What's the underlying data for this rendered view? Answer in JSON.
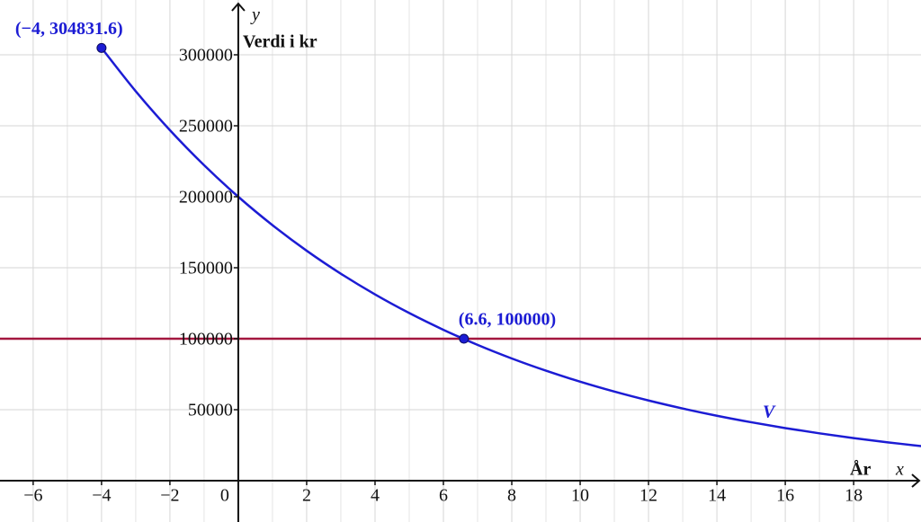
{
  "chart_data": {
    "type": "line",
    "x_label": "År",
    "x_axis_name": "x",
    "y_label": "Verdi i kr",
    "y_axis_name": "y",
    "x": [
      -4,
      -3,
      -2,
      -1,
      0,
      1,
      2,
      3,
      4,
      5,
      6,
      7,
      8,
      9,
      10,
      11,
      12,
      13,
      14,
      15,
      16,
      17,
      18,
      19,
      20
    ],
    "series": [
      {
        "name": "V",
        "color": "#1c1cd4",
        "values": [
          304831.6,
          274348.4,
          246913.6,
          222222.2,
          200000,
          180000,
          162000,
          145800,
          131220,
          118098,
          106288.2,
          95659.4,
          86093.4,
          77484.1,
          69735.7,
          62762.1,
          56485.9,
          50837.3,
          45753.6,
          41178.2,
          37060.4,
          33354.4,
          30018.9,
          27017.0,
          24315.3
        ]
      }
    ],
    "hline": {
      "value": 100000,
      "color": "#a3173f"
    },
    "points": [
      {
        "x": -4,
        "y": 304831.6,
        "label": "(−4, 304831.6)",
        "color": "#1c1cd4"
      },
      {
        "x": 6.6,
        "y": 100000,
        "label": "(6.6, 100000)",
        "color": "#1c1cd4"
      }
    ],
    "xlim": [
      -6.97,
      19.97
    ],
    "ylim": [
      -29100,
      338600
    ],
    "xticks": [
      {
        "value": -6,
        "label": "−6"
      },
      {
        "value": -4,
        "label": "−4"
      },
      {
        "value": -2,
        "label": "−2"
      },
      0,
      2,
      4,
      6,
      8,
      10,
      12,
      14,
      16,
      18
    ],
    "yticks": [
      50000,
      100000,
      150000,
      200000,
      250000,
      300000
    ],
    "grid": true
  }
}
